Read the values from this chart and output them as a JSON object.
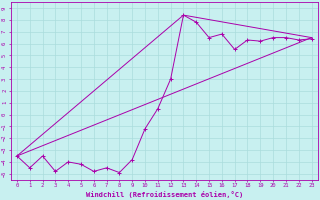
{
  "title": "",
  "xlabel": "Windchill (Refroidissement éolien,°C)",
  "ylabel": "",
  "bg_color": "#c8f0f0",
  "line_color": "#aa00aa",
  "grid_color": "#aadddd",
  "xlim": [
    -0.5,
    23.5
  ],
  "ylim": [
    -5.5,
    9.5
  ],
  "xticks": [
    0,
    1,
    2,
    3,
    4,
    5,
    6,
    7,
    8,
    9,
    10,
    11,
    12,
    13,
    14,
    15,
    16,
    17,
    18,
    19,
    20,
    21,
    22,
    23
  ],
  "yticks": [
    -5,
    -4,
    -3,
    -2,
    -1,
    0,
    1,
    2,
    3,
    4,
    5,
    6,
    7,
    8,
    9
  ],
  "data_line": [
    [
      0,
      -3.5
    ],
    [
      1,
      -4.5
    ],
    [
      2,
      -3.5
    ],
    [
      3,
      -4.8
    ],
    [
      4,
      -4.0
    ],
    [
      5,
      -4.2
    ],
    [
      6,
      -4.8
    ],
    [
      7,
      -4.5
    ],
    [
      8,
      -4.9
    ],
    [
      9,
      -3.8
    ],
    [
      10,
      -1.2
    ],
    [
      11,
      0.5
    ],
    [
      12,
      3.0
    ],
    [
      13,
      8.4
    ],
    [
      14,
      7.8
    ],
    [
      15,
      6.5
    ],
    [
      16,
      6.8
    ],
    [
      17,
      5.5
    ],
    [
      18,
      6.3
    ],
    [
      19,
      6.2
    ],
    [
      20,
      6.5
    ],
    [
      21,
      6.5
    ],
    [
      22,
      6.3
    ],
    [
      23,
      6.4
    ]
  ],
  "reg_line1": [
    [
      0,
      -3.5
    ],
    [
      23,
      6.5
    ]
  ],
  "reg_line2": [
    [
      0,
      -3.5
    ],
    [
      13,
      8.4
    ],
    [
      23,
      6.5
    ]
  ]
}
